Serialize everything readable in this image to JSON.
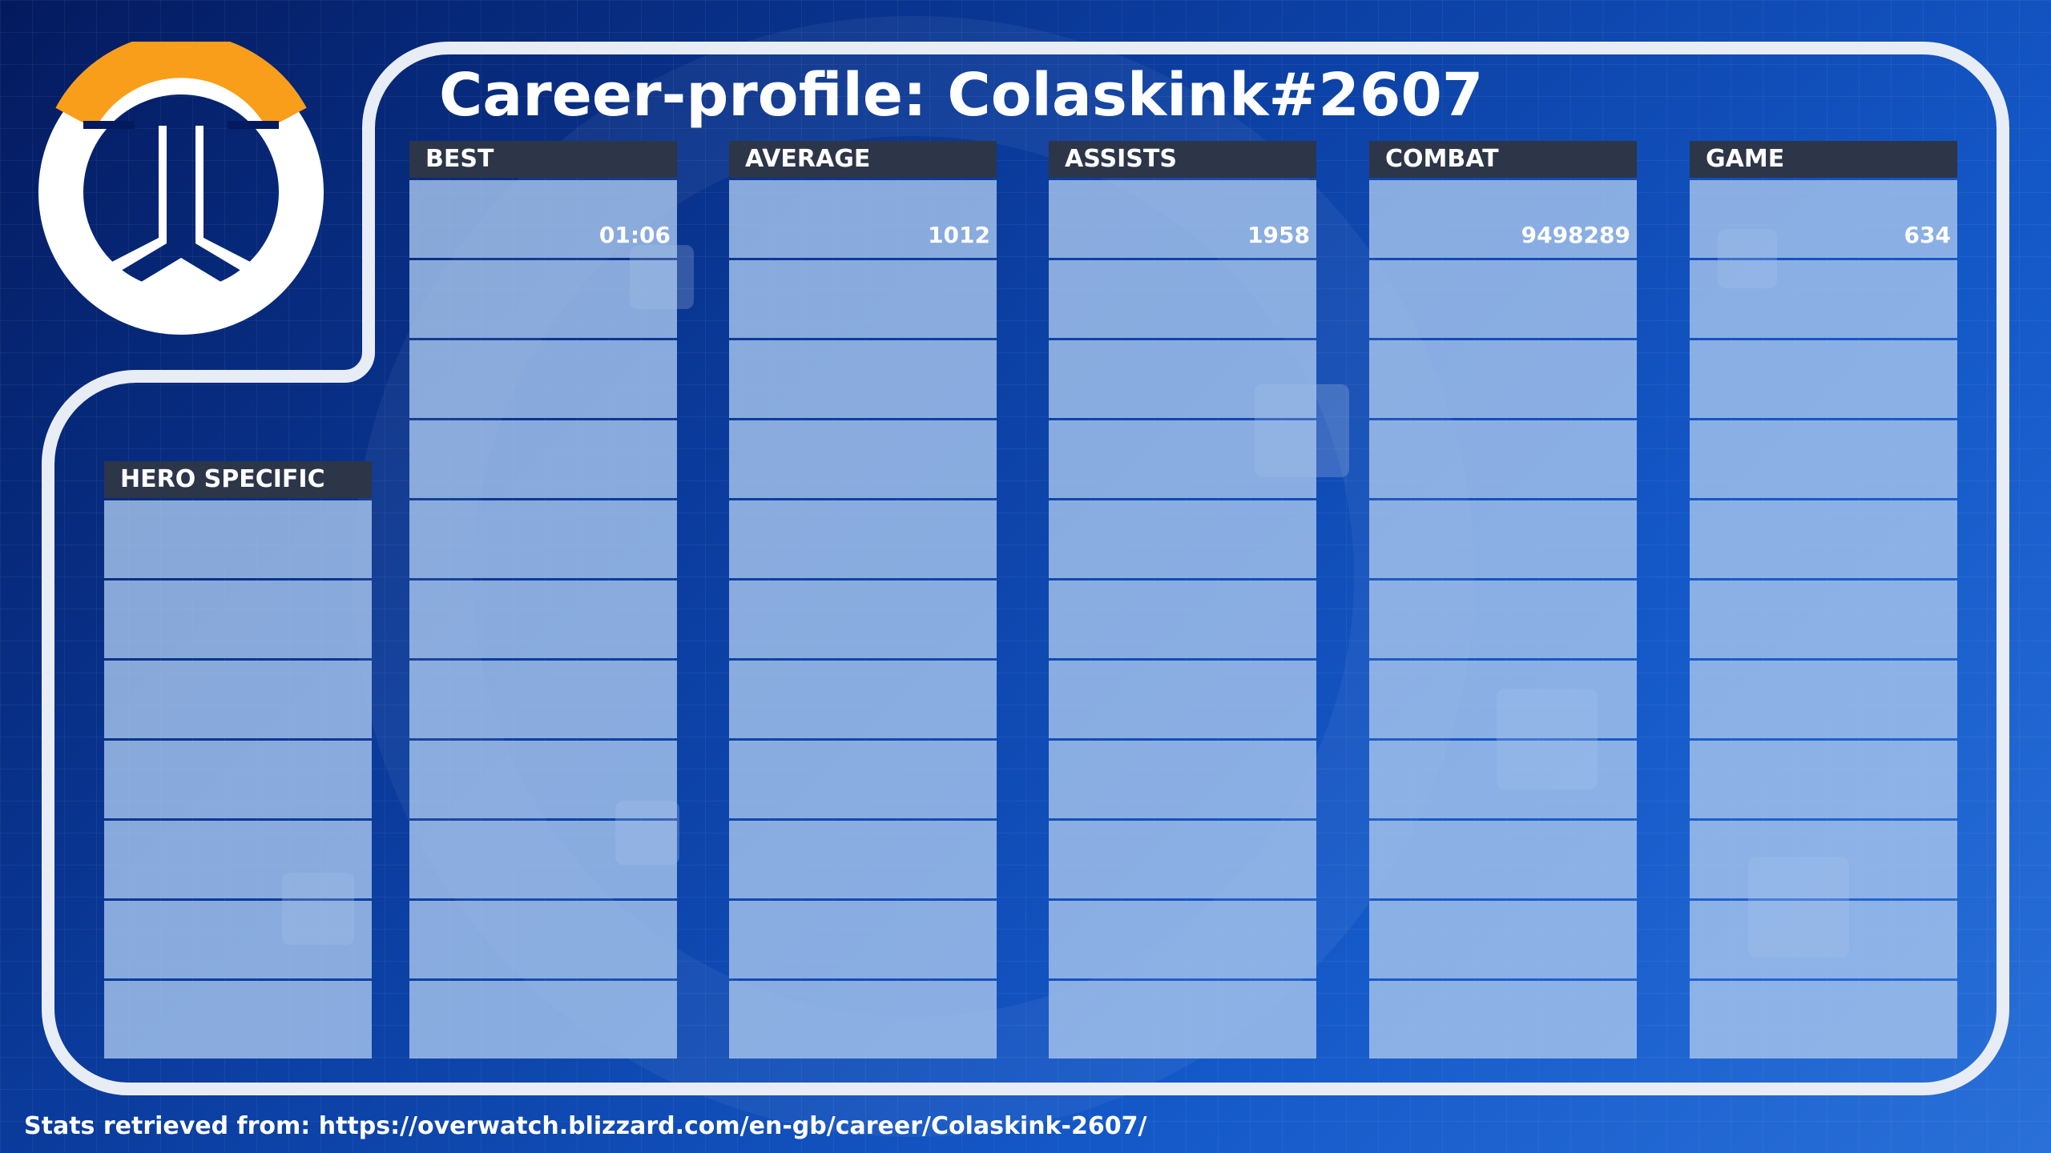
{
  "page_title": "Career-profile: Colaskink#2607",
  "logo_icon": "overwatch-logo-icon",
  "colors": {
    "accent_orange": "#f99e1a",
    "header_bg": "#2d3549",
    "frame_stroke": "#e8ecf5"
  },
  "columns": {
    "hero_specific": {
      "header": "HERO SPECIFIC",
      "value": ""
    },
    "best": {
      "header": "BEST",
      "value": "01:06"
    },
    "average": {
      "header": "AVERAGE",
      "value": "1012"
    },
    "assists": {
      "header": "ASSISTS",
      "value": "1958"
    },
    "combat": {
      "header": "COMBAT",
      "value": "9498289"
    },
    "game": {
      "header": "GAME",
      "value": "634"
    }
  },
  "footer": {
    "text": "Stats retrieved from: https://overwatch.blizzard.com/en-gb/career/Colaskink-2607/"
  }
}
